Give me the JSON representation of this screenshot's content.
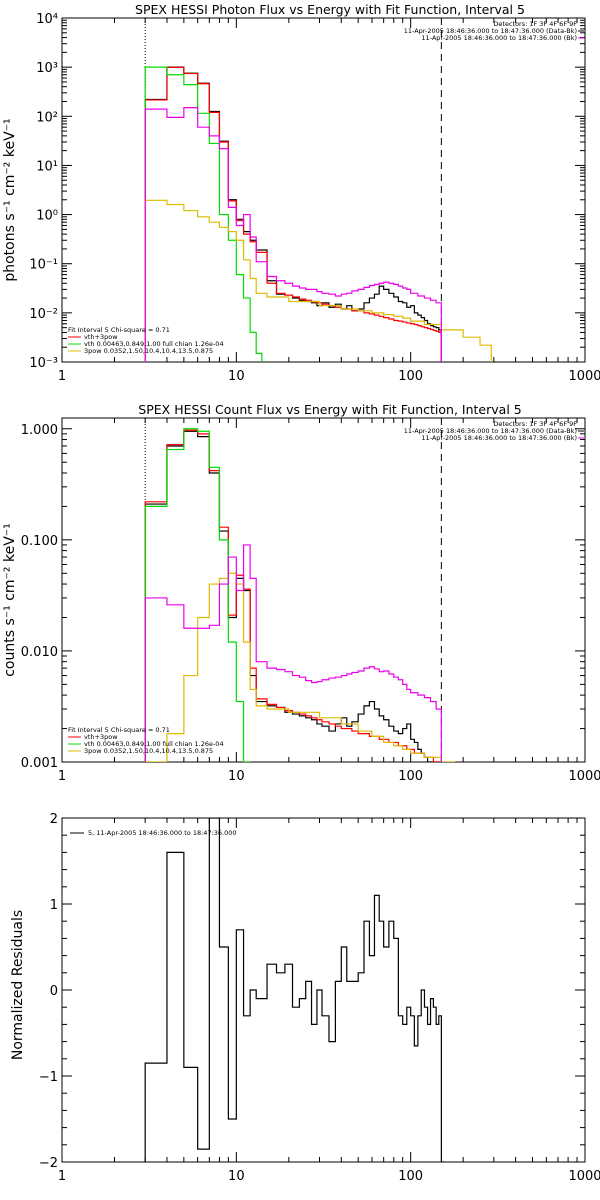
{
  "chart_data": [
    {
      "type": "line",
      "title": "SPEX HESSI Photon Flux vs Energy with Fit Function, Interval 5",
      "xlabel": "",
      "ylabel": "photons s⁻¹ cm⁻² keV⁻¹",
      "xscale": "log",
      "yscale": "log",
      "xlim": [
        1,
        1000
      ],
      "ylim": [
        0.001,
        10000
      ],
      "x_ticks": [
        {
          "value": 1,
          "label": "1"
        },
        {
          "value": 10,
          "label": "10"
        },
        {
          "value": 100,
          "label": "100"
        },
        {
          "value": 1000,
          "label": "1000"
        }
      ],
      "y_ticks": [
        {
          "value": 0.001,
          "label": "10⁻³"
        },
        {
          "value": 0.01,
          "label": "10⁻²"
        },
        {
          "value": 0.1,
          "label": "10⁻¹"
        },
        {
          "value": 1,
          "label": "10⁰"
        },
        {
          "value": 10,
          "label": "10¹"
        },
        {
          "value": 100,
          "label": "10²"
        },
        {
          "value": 1000,
          "label": "10³"
        },
        {
          "value": 10000,
          "label": "10⁴"
        }
      ],
      "vlines": [
        {
          "x": 3,
          "style": "dotted"
        },
        {
          "x": 150,
          "style": "dashed"
        }
      ],
      "legend_topright": [
        "Detectors: 1F 3F 4F 6F 9F",
        "11-Apr-2005 18:46:36.000 to 18:47:36.000 (Data-Bk)",
        "11-Apr-2005 18:46:36.000 to 18:47:36.000 (Bk)"
      ],
      "legend_bottomleft": [
        "Fit Interval  5   Chi-square = 0.71",
        "vth+3pow",
        "vth 0.00463,0.849,1.00  full chian 1.26e-04",
        "3pow 0.0352,1.50,10.4,10.4,13.5,0.875"
      ],
      "series": [
        {
          "name": "Data-Bk",
          "color": "#000000",
          "edges": [
            3,
            4,
            5,
            6,
            7,
            8,
            9,
            10,
            11,
            12,
            13,
            15,
            17,
            19,
            21,
            23,
            25,
            27,
            29,
            31,
            34,
            37,
            40,
            43,
            46,
            50,
            54,
            58,
            62,
            66,
            70,
            75,
            80,
            85,
            90,
            95,
            100,
            105,
            110,
            115,
            120,
            125,
            130,
            135,
            140,
            145,
            150
          ],
          "values": [
            220,
            1000,
            750,
            470,
            125,
            31,
            2.0,
            0.8,
            0.45,
            0.3,
            0.19,
            0.045,
            0.024,
            0.023,
            0.02,
            0.018,
            0.017,
            0.016,
            0.014,
            0.016,
            0.013,
            0.015,
            0.012,
            0.014,
            0.011,
            0.012,
            0.016,
            0.02,
            0.024,
            0.035,
            0.03,
            0.025,
            0.021,
            0.017,
            0.016,
            0.013,
            0.014,
            0.01,
            0.009,
            0.008,
            0.007,
            0.006,
            0.0055,
            0.0052,
            0.005,
            0.0045
          ]
        },
        {
          "name": "vth+3pow",
          "color": "#ff0000",
          "edges": [
            3,
            4,
            5,
            6,
            7,
            8,
            9,
            10,
            11,
            12,
            13,
            15,
            17,
            19,
            21,
            23,
            25,
            27,
            29,
            31,
            34,
            37,
            40,
            43,
            46,
            50,
            54,
            58,
            62,
            66,
            70,
            75,
            80,
            85,
            90,
            95,
            100,
            105,
            110,
            115,
            120,
            125,
            130,
            135,
            140,
            145,
            150
          ],
          "values": [
            215,
            990,
            740,
            460,
            120,
            30,
            1.9,
            0.75,
            0.4,
            0.28,
            0.17,
            0.04,
            0.025,
            0.023,
            0.021,
            0.019,
            0.018,
            0.017,
            0.016,
            0.015,
            0.014,
            0.013,
            0.012,
            0.012,
            0.011,
            0.011,
            0.01,
            0.0095,
            0.009,
            0.0085,
            0.008,
            0.0075,
            0.007,
            0.0068,
            0.0065,
            0.0062,
            0.006,
            0.0058,
            0.0055,
            0.0052,
            0.005,
            0.0048,
            0.0046,
            0.0044,
            0.0042,
            0.004
          ]
        },
        {
          "name": "vth",
          "color": "#00dd00",
          "edges": [
            3,
            4,
            5,
            6,
            7,
            8,
            9,
            10,
            11,
            12,
            13,
            14
          ],
          "values": [
            1000,
            700,
            440,
            115,
            28,
            1.0,
            0.3,
            0.06,
            0.02,
            0.004,
            0.0015
          ]
        },
        {
          "name": "3pow",
          "color": "#ddbb00",
          "edges": [
            3,
            4,
            5,
            6,
            7,
            8,
            9,
            10,
            11,
            12,
            13,
            15,
            20,
            30,
            40,
            50,
            60,
            70,
            80,
            90,
            100,
            120,
            150,
            200,
            250,
            290
          ],
          "values": [
            1.95,
            1.6,
            1.2,
            0.9,
            0.7,
            0.55,
            0.45,
            0.3,
            0.12,
            0.05,
            0.025,
            0.021,
            0.017,
            0.014,
            0.012,
            0.011,
            0.01,
            0.0092,
            0.0085,
            0.0078,
            0.0068,
            0.0058,
            0.0045,
            0.0032,
            0.0022
          ]
        },
        {
          "name": "Bk",
          "color": "#ee00ee",
          "edges": [
            3,
            4,
            5,
            6,
            7,
            8,
            9,
            10,
            11,
            12,
            13,
            15,
            17,
            19,
            21,
            23,
            25,
            27,
            29,
            31,
            34,
            37,
            40,
            43,
            46,
            50,
            54,
            58,
            62,
            66,
            70,
            75,
            80,
            85,
            90,
            95,
            100,
            110,
            120,
            130,
            140,
            150
          ],
          "values": [
            140,
            95,
            150,
            60,
            40,
            22,
            1.4,
            0.6,
            1.0,
            0.35,
            0.11,
            0.055,
            0.045,
            0.04,
            0.035,
            0.032,
            0.03,
            0.03,
            0.027,
            0.025,
            0.024,
            0.022,
            0.024,
            0.025,
            0.028,
            0.03,
            0.033,
            0.036,
            0.038,
            0.04,
            0.042,
            0.04,
            0.038,
            0.035,
            0.032,
            0.03,
            0.025,
            0.022,
            0.02,
            0.018,
            0.016
          ]
        }
      ]
    },
    {
      "type": "line",
      "title": "SPEX HESSI Count Flux vs Energy with Fit Function, Interval 5",
      "xlabel": "",
      "ylabel": "counts s⁻¹ cm⁻² keV⁻¹",
      "xscale": "log",
      "yscale": "log",
      "xlim": [
        1,
        1000
      ],
      "ylim": [
        0.001,
        1.25
      ],
      "x_ticks": [
        {
          "value": 1,
          "label": "1"
        },
        {
          "value": 10,
          "label": "10"
        },
        {
          "value": 100,
          "label": "100"
        },
        {
          "value": 1000,
          "label": "1000"
        }
      ],
      "y_ticks": [
        {
          "value": 0.001,
          "label": "0.001"
        },
        {
          "value": 0.01,
          "label": "0.010"
        },
        {
          "value": 0.1,
          "label": "0.100"
        },
        {
          "value": 1,
          "label": "1.000"
        }
      ],
      "vlines": [
        {
          "x": 3,
          "style": "dotted"
        },
        {
          "x": 150,
          "style": "dashed"
        }
      ],
      "legend_topright": [
        "Detectors: 1F 3F 4F 6F 9F",
        "11-Apr-2005 18:46:36.000 to 18:47:36.000 (Data-Bk)",
        "11-Apr-2005 18:46:36.000 to 18:47:36.000 (Bk)"
      ],
      "legend_bottomleft": [
        "Fit Interval  5   Chi-square = 0.71",
        "vth+3pow",
        "vth 0.00463,0.849,1.00  full chian 1.26e-04",
        "3pow 0.0352,1.50,10.4,10.4,13.5,0.875"
      ],
      "series": [
        {
          "name": "Data-Bk",
          "color": "#000000",
          "edges": [
            3,
            4,
            5,
            6,
            7,
            8,
            9,
            10,
            11,
            12,
            13,
            15,
            17,
            19,
            21,
            23,
            25,
            27,
            29,
            31,
            34,
            37,
            40,
            43,
            46,
            50,
            54,
            58,
            62,
            66,
            70,
            75,
            80,
            85,
            90,
            95,
            100,
            105,
            110,
            115,
            120,
            125,
            130,
            135,
            140,
            145,
            150
          ],
          "values": [
            0.21,
            0.7,
            0.95,
            0.85,
            0.4,
            0.12,
            0.02,
            0.045,
            0.035,
            0.006,
            0.0035,
            0.0032,
            0.0031,
            0.0028,
            0.0027,
            0.0026,
            0.0025,
            0.0024,
            0.0022,
            0.0021,
            0.0019,
            0.0022,
            0.0025,
            0.0021,
            0.0023,
            0.0027,
            0.0032,
            0.0035,
            0.003,
            0.0026,
            0.0024,
            0.0021,
            0.0019,
            0.0018,
            0.002,
            0.0022,
            0.0016,
            0.0015,
            0.0013,
            0.0012,
            0.0011,
            0.001,
            0.001,
            0.001,
            0.001,
            0.001
          ]
        },
        {
          "name": "vth+3pow",
          "color": "#ff0000",
          "edges": [
            3,
            4,
            5,
            6,
            7,
            8,
            9,
            10,
            11,
            12,
            13,
            15,
            17,
            19,
            21,
            23,
            25,
            27,
            29,
            31,
            34,
            37,
            40,
            43,
            46,
            50,
            54,
            58,
            62,
            66,
            70,
            75,
            80,
            85,
            90,
            95,
            100,
            105,
            110,
            115,
            120,
            125,
            130,
            135,
            140,
            145,
            150
          ],
          "values": [
            0.22,
            0.72,
            0.97,
            0.9,
            0.42,
            0.13,
            0.021,
            0.048,
            0.036,
            0.007,
            0.0037,
            0.0033,
            0.0031,
            0.0029,
            0.0028,
            0.0027,
            0.0026,
            0.0025,
            0.0024,
            0.0023,
            0.0022,
            0.0021,
            0.002,
            0.002,
            0.0019,
            0.0018,
            0.0018,
            0.0017,
            0.0017,
            0.0016,
            0.0016,
            0.0015,
            0.0015,
            0.0014,
            0.0014,
            0.0013,
            0.0013,
            0.0012,
            0.0012,
            0.0012,
            0.0011,
            0.0011,
            0.0011,
            0.001,
            0.001,
            0.001
          ]
        },
        {
          "name": "vth",
          "color": "#00dd00",
          "edges": [
            3,
            4,
            5,
            6,
            7,
            8,
            9,
            10,
            11,
            12
          ],
          "values": [
            0.2,
            0.65,
            1.0,
            0.95,
            0.45,
            0.1,
            0.012,
            0.0035,
            0.0009
          ]
        },
        {
          "name": "3pow",
          "color": "#ddbb00",
          "edges": [
            3,
            4,
            5,
            6,
            7,
            8,
            9,
            10,
            11,
            12,
            13,
            15,
            20,
            30,
            40,
            50,
            60,
            70,
            80,
            90,
            100,
            120,
            150,
            180
          ],
          "values": [
            0.001,
            0.0018,
            0.006,
            0.02,
            0.04,
            0.045,
            0.05,
            0.04,
            0.012,
            0.0045,
            0.0032,
            0.003,
            0.0028,
            0.0025,
            0.0022,
            0.0019,
            0.0017,
            0.0015,
            0.0014,
            0.0013,
            0.0012,
            0.0011,
            0.001
          ]
        },
        {
          "name": "Bk",
          "color": "#ee00ee",
          "edges": [
            3,
            4,
            5,
            6,
            7,
            8,
            9,
            10,
            11,
            12,
            13,
            15,
            17,
            19,
            21,
            23,
            25,
            27,
            29,
            31,
            34,
            37,
            40,
            43,
            46,
            50,
            54,
            58,
            62,
            66,
            70,
            75,
            80,
            85,
            90,
            95,
            100,
            110,
            120,
            130,
            140,
            150
          ],
          "values": [
            0.03,
            0.026,
            0.016,
            0.016,
            0.017,
            0.04,
            0.07,
            0.035,
            0.09,
            0.045,
            0.008,
            0.007,
            0.0068,
            0.0065,
            0.006,
            0.0058,
            0.0054,
            0.0052,
            0.0053,
            0.0055,
            0.0057,
            0.0058,
            0.006,
            0.0062,
            0.0064,
            0.0066,
            0.007,
            0.0072,
            0.0069,
            0.0065,
            0.0066,
            0.0062,
            0.0058,
            0.0055,
            0.005,
            0.0045,
            0.0042,
            0.004,
            0.0038,
            0.0035,
            0.003
          ]
        }
      ]
    },
    {
      "type": "line",
      "title": "",
      "xlabel": "",
      "ylabel": "Normalized Residuals",
      "xscale": "log",
      "yscale": "linear",
      "xlim": [
        1,
        1000
      ],
      "ylim": [
        -2,
        2
      ],
      "x_ticks": [
        {
          "value": 1,
          "label": "1"
        },
        {
          "value": 10,
          "label": "10"
        },
        {
          "value": 100,
          "label": "100"
        },
        {
          "value": 1000,
          "label": "1000"
        }
      ],
      "y_ticks": [
        {
          "value": -2,
          "label": "−2"
        },
        {
          "value": -1,
          "label": "−1"
        },
        {
          "value": 0,
          "label": "0"
        },
        {
          "value": 1,
          "label": "1"
        },
        {
          "value": 2,
          "label": "2"
        }
      ],
      "legend": "5, 11-Apr-2005 18:46:36.000 to 18:47:36.000",
      "series": [
        {
          "name": "5, 11-Apr-2005 18:46:36.000 to 18:47:36.000",
          "color": "#000000",
          "edges": [
            3,
            4,
            5,
            6,
            7,
            8,
            9,
            10,
            11,
            12,
            13,
            15,
            17,
            19,
            21,
            23,
            25,
            27,
            29,
            31,
            34,
            37,
            40,
            43,
            46,
            50,
            54,
            58,
            62,
            66,
            70,
            75,
            80,
            85,
            90,
            95,
            100,
            105,
            110,
            115,
            120,
            125,
            130,
            135,
            140,
            145,
            150,
            155
          ],
          "values": [
            -0.85,
            1.6,
            -0.9,
            -1.85,
            2.0,
            0.5,
            -1.5,
            0.7,
            -0.3,
            0.0,
            -0.1,
            0.3,
            0.2,
            0.3,
            -0.2,
            -0.1,
            0.1,
            -0.4,
            0.0,
            -0.3,
            -0.6,
            0.1,
            0.5,
            0.1,
            0.1,
            0.2,
            0.8,
            0.4,
            1.1,
            0.8,
            0.5,
            0.8,
            0.6,
            -0.3,
            -0.4,
            -0.2,
            -0.3,
            -0.65,
            -0.3,
            0.0,
            -0.2,
            -0.4,
            -0.1,
            -0.2,
            -0.4,
            -0.3,
            -2.1
          ]
        }
      ]
    }
  ]
}
